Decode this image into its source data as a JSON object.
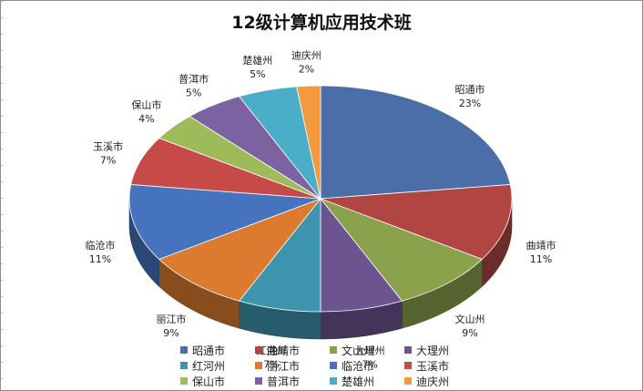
{
  "chart_data": {
    "type": "pie",
    "title": "12级计算机应用技术班",
    "legend_position": "bottom",
    "slices": [
      {
        "label": "昭通市",
        "value": 23,
        "display": "23%",
        "color": "#4a6fa8"
      },
      {
        "label": "曲靖市",
        "value": 11,
        "display": "11%",
        "color": "#b04542"
      },
      {
        "label": "文山州",
        "value": 9,
        "display": "9%",
        "color": "#8aa24c"
      },
      {
        "label": "大理州",
        "value": 7,
        "display": "7%",
        "color": "#6c5490"
      },
      {
        "label": "红河州",
        "value": 7,
        "display": "7%",
        "color": "#3d95ad"
      },
      {
        "label": "丽江市",
        "value": 9,
        "display": "9%",
        "color": "#dc7b2f"
      },
      {
        "label": "临沧市",
        "value": 11,
        "display": "11%",
        "color": "#4673bd"
      },
      {
        "label": "玉溪市",
        "value": 7,
        "display": "7%",
        "color": "#c64a48"
      },
      {
        "label": "保山市",
        "value": 4,
        "display": "4%",
        "color": "#9dbb59"
      },
      {
        "label": "普洱市",
        "value": 5,
        "display": "5%",
        "color": "#7c62a0"
      },
      {
        "label": "楚雄州",
        "value": 5,
        "display": "5%",
        "color": "#4aaec8"
      },
      {
        "label": "迪庆州",
        "value": 2,
        "display": "2%",
        "color": "#f39a3e"
      }
    ]
  }
}
